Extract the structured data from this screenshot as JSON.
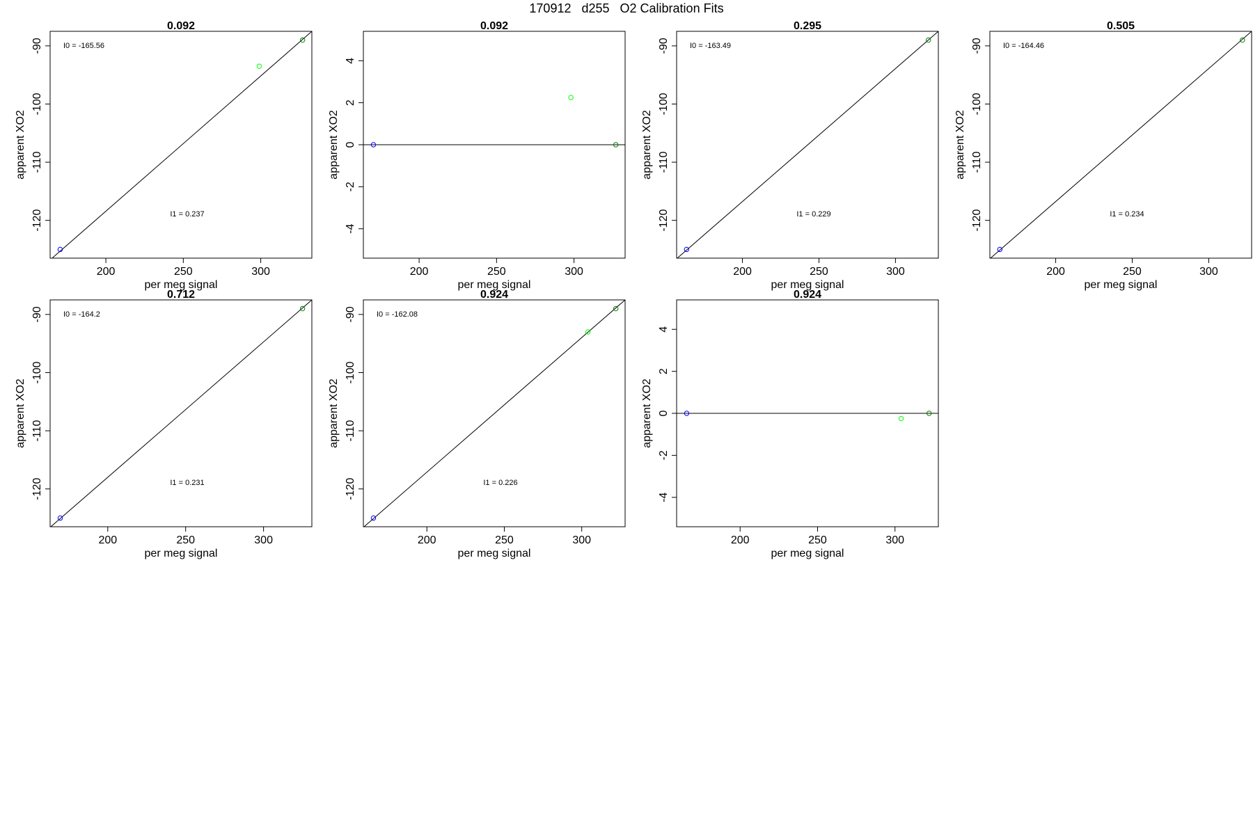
{
  "figure": {
    "title": "170912   d255   O2 Calibration Fits",
    "colors": {
      "axis": "#000000",
      "fit_line": "#000000",
      "point_blue": "#0000ff",
      "point_green": "#00ff00",
      "point_darkgreen": "#008000"
    }
  },
  "chart_data": [
    {
      "type": "scatter",
      "title": "0.092",
      "xlabel": "per meg signal",
      "ylabel": "apparent XO2",
      "xlim": [
        164,
        333
      ],
      "ylim": [
        -126.5,
        -87.5
      ],
      "xticks": [
        200,
        250,
        300
      ],
      "yticks": [
        -90,
        -100,
        -110,
        -120
      ],
      "points": [
        {
          "x": 170.5,
          "y": -125.0,
          "color": "#0000ff"
        },
        {
          "x": 299.0,
          "y": -93.5,
          "color": "#00ff00"
        },
        {
          "x": 327.0,
          "y": -89.0,
          "color": "#008000"
        }
      ],
      "line": {
        "x": [
          164,
          333
        ],
        "y": [
          -126.8,
          -87.5
        ]
      },
      "annotations": [
        {
          "text": "I0 =  -165.56",
          "at": "top-left"
        },
        {
          "text": "I1 =  0.237",
          "at": "lower-middle"
        }
      ]
    },
    {
      "type": "scatter",
      "title": "0.092",
      "xlabel": "per meg signal",
      "ylabel": "apparent XO2",
      "xlim": [
        164,
        333
      ],
      "ylim": [
        -5.4,
        5.4
      ],
      "xticks": [
        200,
        250,
        300
      ],
      "yticks": [
        4,
        2,
        0,
        -2,
        -4
      ],
      "points": [
        {
          "x": 170.5,
          "y": 0.0,
          "color": "#0000ff"
        },
        {
          "x": 298.0,
          "y": 2.25,
          "color": "#00ff00"
        },
        {
          "x": 327.0,
          "y": 0.0,
          "color": "#008000"
        }
      ],
      "line": {
        "x": [
          164,
          333
        ],
        "y": [
          0,
          0
        ]
      },
      "annotations": []
    },
    {
      "type": "scatter",
      "title": "0.295",
      "xlabel": "per meg signal",
      "ylabel": "apparent XO2",
      "xlim": [
        157,
        328
      ],
      "ylim": [
        -126.5,
        -87.5
      ],
      "xticks": [
        200,
        250,
        300
      ],
      "yticks": [
        -90,
        -100,
        -110,
        -120
      ],
      "points": [
        {
          "x": 163.5,
          "y": -125.0,
          "color": "#0000ff"
        },
        {
          "x": 321.5,
          "y": -89.0,
          "color": "#008000"
        }
      ],
      "line": {
        "x": [
          157,
          328
        ],
        "y": [
          -126.6,
          -87.5
        ]
      },
      "annotations": [
        {
          "text": "I0 =  -163.49",
          "at": "top-left"
        },
        {
          "text": "I1 =  0.229",
          "at": "lower-middle"
        }
      ]
    },
    {
      "type": "scatter",
      "title": "0.505",
      "xlabel": "per meg signal",
      "ylabel": "apparent XO2",
      "xlim": [
        157,
        328
      ],
      "ylim": [
        -126.5,
        -87.5
      ],
      "xticks": [
        200,
        250,
        300
      ],
      "yticks": [
        -90,
        -100,
        -110,
        -120
      ],
      "points": [
        {
          "x": 163.5,
          "y": -125.0,
          "color": "#0000ff"
        },
        {
          "x": 322.0,
          "y": -89.0,
          "color": "#008000"
        }
      ],
      "line": {
        "x": [
          157,
          328
        ],
        "y": [
          -126.6,
          -87.5
        ]
      },
      "annotations": [
        {
          "text": "I0 =  -164.46",
          "at": "top-left"
        },
        {
          "text": "I1 =  0.234",
          "at": "lower-middle"
        }
      ]
    },
    {
      "type": "scatter",
      "title": "0.712",
      "xlabel": "per meg signal",
      "ylabel": "apparent XO2",
      "xlim": [
        163,
        331
      ],
      "ylim": [
        -126.5,
        -87.5
      ],
      "xticks": [
        200,
        250,
        300
      ],
      "yticks": [
        -90,
        -100,
        -110,
        -120
      ],
      "points": [
        {
          "x": 169.5,
          "y": -125.0,
          "color": "#0000ff"
        },
        {
          "x": 325.0,
          "y": -89.0,
          "color": "#008000"
        }
      ],
      "line": {
        "x": [
          163,
          331
        ],
        "y": [
          -126.6,
          -87.5
        ]
      },
      "annotations": [
        {
          "text": "I0 =  -164.2",
          "at": "top-left"
        },
        {
          "text": "I1 =  0.231",
          "at": "lower-middle"
        }
      ]
    },
    {
      "type": "scatter",
      "title": "0.924",
      "xlabel": "per meg signal",
      "ylabel": "apparent XO2",
      "xlim": [
        159,
        328
      ],
      "ylim": [
        -126.5,
        -87.5
      ],
      "xticks": [
        200,
        250,
        300
      ],
      "yticks": [
        -90,
        -100,
        -110,
        -120
      ],
      "points": [
        {
          "x": 165.5,
          "y": -125.0,
          "color": "#0000ff"
        },
        {
          "x": 304.0,
          "y": -93.0,
          "color": "#00ff00"
        },
        {
          "x": 322.0,
          "y": -89.0,
          "color": "#008000"
        }
      ],
      "line": {
        "x": [
          159,
          328
        ],
        "y": [
          -126.6,
          -87.5
        ]
      },
      "annotations": [
        {
          "text": "I0 =  -162.08",
          "at": "top-left"
        },
        {
          "text": "I1 =  0.226",
          "at": "lower-middle"
        }
      ]
    },
    {
      "type": "scatter",
      "title": "0.924",
      "xlabel": "per meg signal",
      "ylabel": "apparent XO2",
      "xlim": [
        159,
        328
      ],
      "ylim": [
        -5.4,
        5.4
      ],
      "xticks": [
        200,
        250,
        300
      ],
      "yticks": [
        4,
        2,
        0,
        -2,
        -4
      ],
      "points": [
        {
          "x": 165.5,
          "y": 0.0,
          "color": "#0000ff"
        },
        {
          "x": 304.0,
          "y": -0.25,
          "color": "#00ff00"
        },
        {
          "x": 322.0,
          "y": 0.0,
          "color": "#008000"
        }
      ],
      "line": {
        "x": [
          159,
          328
        ],
        "y": [
          0,
          0
        ]
      },
      "annotations": []
    }
  ]
}
